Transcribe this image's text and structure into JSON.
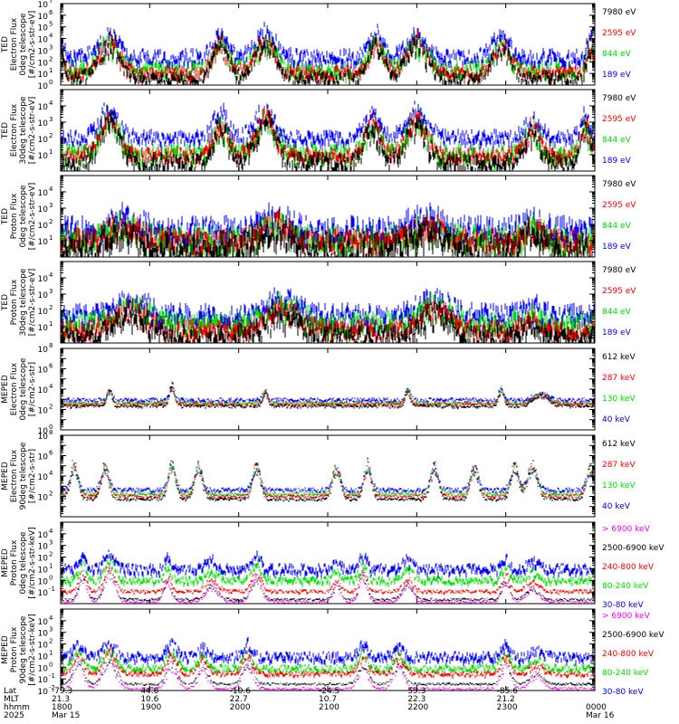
{
  "chart_data": {
    "type": "line",
    "title": "",
    "x_range": [
      1800,
      2400
    ],
    "panels": [
      {
        "id": "ted-electron-0deg",
        "ylabel_lines": [
          "TED",
          "Electron Flux",
          "0deg telescope",
          "[#/cm2-s-str-eV]"
        ],
        "ylim_exp": [
          0,
          7
        ],
        "tick_exps": [
          0,
          1,
          2,
          3,
          4,
          5,
          6,
          7
        ],
        "series": [
          {
            "name": "7980 eV",
            "color": "#000000",
            "baseline_exp": 0.8,
            "noise_exp": 0.5
          },
          {
            "name": "2595 eV",
            "color": "#ff0000",
            "baseline_exp": 1.2,
            "noise_exp": 0.5
          },
          {
            "name": "844 eV",
            "color": "#00dd00",
            "baseline_exp": 1.5,
            "noise_exp": 0.6
          },
          {
            "name": "189 eV",
            "color": "#0000ff",
            "baseline_exp": 2.6,
            "noise_exp": 0.6
          }
        ],
        "peaks": [
          {
            "t": 1800,
            "w": 5,
            "amp": 2.5
          },
          {
            "t": 1855,
            "w": 16,
            "amp": 3.0
          },
          {
            "t": 1980,
            "w": 12,
            "amp": 2.8
          },
          {
            "t": 2030,
            "w": 16,
            "amp": 3.0
          },
          {
            "t": 2155,
            "w": 12,
            "amp": 2.8
          },
          {
            "t": 2200,
            "w": 16,
            "amp": 3.0
          },
          {
            "t": 2295,
            "w": 14,
            "amp": 2.6
          },
          {
            "t": 2395,
            "w": 5,
            "amp": 2.5
          }
        ]
      },
      {
        "id": "ted-electron-30deg",
        "ylabel_lines": [
          "TED",
          "Electron Flux",
          "30deg telescope",
          "[#/cm2-s-str-eV]"
        ],
        "ylim_exp": [
          0,
          5
        ],
        "tick_exps": [
          1,
          2,
          3,
          4
        ],
        "series": [
          {
            "name": "7980 eV",
            "color": "#000000",
            "baseline_exp": 0.7,
            "noise_exp": 0.5
          },
          {
            "name": "2595 eV",
            "color": "#ff0000",
            "baseline_exp": 1.1,
            "noise_exp": 0.4
          },
          {
            "name": "844 eV",
            "color": "#00dd00",
            "baseline_exp": 1.2,
            "noise_exp": 0.5
          },
          {
            "name": "189 eV",
            "color": "#0000ff",
            "baseline_exp": 2.2,
            "noise_exp": 0.4
          }
        ],
        "peaks": [
          {
            "t": 1855,
            "w": 16,
            "amp": 2.5
          },
          {
            "t": 1980,
            "w": 12,
            "amp": 2.2
          },
          {
            "t": 2030,
            "w": 16,
            "amp": 2.5
          },
          {
            "t": 2150,
            "w": 12,
            "amp": 2.2
          },
          {
            "t": 2200,
            "w": 16,
            "amp": 2.5
          },
          {
            "t": 2330,
            "w": 12,
            "amp": 1.8
          },
          {
            "t": 2390,
            "w": 8,
            "amp": 2.0
          }
        ]
      },
      {
        "id": "ted-proton-0deg",
        "ylabel_lines": [
          "TED",
          "Proton Flux",
          "0deg telescope",
          "[#/cm2-s-str-eV]"
        ],
        "ylim_exp": [
          0,
          5
        ],
        "tick_exps": [
          1,
          2,
          3,
          4
        ],
        "series": [
          {
            "name": "7980 eV",
            "color": "#000000",
            "baseline_exp": 0.8,
            "noise_exp": 0.8
          },
          {
            "name": "2595 eV",
            "color": "#ff0000",
            "baseline_exp": 1.2,
            "noise_exp": 0.6
          },
          {
            "name": "844 eV",
            "color": "#00dd00",
            "baseline_exp": 1.3,
            "noise_exp": 0.7
          },
          {
            "name": "189 eV",
            "color": "#0000ff",
            "baseline_exp": 1.9,
            "noise_exp": 0.7
          }
        ],
        "peaks": [
          {
            "t": 1870,
            "w": 25,
            "amp": 1.1
          },
          {
            "t": 2040,
            "w": 25,
            "amp": 1.1
          },
          {
            "t": 2210,
            "w": 25,
            "amp": 1.1
          },
          {
            "t": 2330,
            "w": 15,
            "amp": 0.9
          }
        ]
      },
      {
        "id": "ted-proton-30deg",
        "ylabel_lines": [
          "TED",
          "Proton Flux",
          "30deg telescope",
          "[#/cm2-s-str-eV]"
        ],
        "ylim_exp": [
          0,
          5
        ],
        "tick_exps": [
          1,
          2,
          3,
          4
        ],
        "series": [
          {
            "name": "7980 eV",
            "color": "#000000",
            "baseline_exp": 0.6,
            "noise_exp": 0.6
          },
          {
            "name": "2595 eV",
            "color": "#ff0000",
            "baseline_exp": 1.0,
            "noise_exp": 0.5
          },
          {
            "name": "844 eV",
            "color": "#00dd00",
            "baseline_exp": 1.4,
            "noise_exp": 0.6
          },
          {
            "name": "189 eV",
            "color": "#0000ff",
            "baseline_exp": 1.9,
            "noise_exp": 0.6
          }
        ],
        "peaks": [
          {
            "t": 1880,
            "w": 25,
            "amp": 1.4
          },
          {
            "t": 2050,
            "w": 25,
            "amp": 1.4
          },
          {
            "t": 2220,
            "w": 25,
            "amp": 1.4
          },
          {
            "t": 2330,
            "w": 12,
            "amp": 0.8
          }
        ]
      },
      {
        "id": "meped-electron-0deg",
        "ylabel_lines": [
          "MEPED",
          "Electron Flux",
          "0deg telescope",
          "[#/cm2-s-str]"
        ],
        "ylim_exp": [
          0,
          8
        ],
        "tick_exps": [
          0,
          2,
          4,
          6,
          8
        ],
        "series": [
          {
            "name": "612 keV",
            "color": "#000000",
            "baseline_exp": 2.4,
            "noise_exp": 0.15
          },
          {
            "name": "287 keV",
            "color": "#ff0000",
            "baseline_exp": 2.6,
            "noise_exp": 0.15
          },
          {
            "name": "130 keV",
            "color": "#00dd00",
            "baseline_exp": 2.7,
            "noise_exp": 0.15
          },
          {
            "name": "40 keV",
            "color": "#0000ff",
            "baseline_exp": 3.0,
            "noise_exp": 0.2
          }
        ],
        "peaks": [
          {
            "t": 1855,
            "w": 4,
            "amp": 1.5
          },
          {
            "t": 1925,
            "w": 4,
            "amp": 2.0
          },
          {
            "t": 2030,
            "w": 4,
            "amp": 1.3
          },
          {
            "t": 2190,
            "w": 4,
            "amp": 1.5
          },
          {
            "t": 2295,
            "w": 4,
            "amp": 1.5
          },
          {
            "t": 2340,
            "w": 12,
            "amp": 1.0
          }
        ]
      },
      {
        "id": "meped-electron-90deg",
        "ylabel_lines": [
          "MEPED",
          "Electron Flux",
          "90deg telescope",
          "[#/cm2-s-str]"
        ],
        "ylim_exp": [
          0,
          8
        ],
        "tick_exps": [
          2,
          4,
          6,
          8
        ],
        "series": [
          {
            "name": "612 keV",
            "color": "#000000",
            "baseline_exp": 1.8,
            "noise_exp": 0.15
          },
          {
            "name": "287 keV",
            "color": "#ff0000",
            "baseline_exp": 2.1,
            "noise_exp": 0.15
          },
          {
            "name": "130 keV",
            "color": "#00dd00",
            "baseline_exp": 2.3,
            "noise_exp": 0.15
          },
          {
            "name": "40 keV",
            "color": "#0000ff",
            "baseline_exp": 2.7,
            "noise_exp": 0.2
          }
        ],
        "peaks": [
          {
            "t": 1815,
            "w": 6,
            "amp": 3.3
          },
          {
            "t": 1850,
            "w": 6,
            "amp": 3.3
          },
          {
            "t": 1925,
            "w": 6,
            "amp": 3.3
          },
          {
            "t": 1955,
            "w": 6,
            "amp": 3.3
          },
          {
            "t": 2020,
            "w": 6,
            "amp": 3.3
          },
          {
            "t": 2110,
            "w": 6,
            "amp": 3.2
          },
          {
            "t": 2145,
            "w": 6,
            "amp": 3.2
          },
          {
            "t": 2220,
            "w": 6,
            "amp": 3.2
          },
          {
            "t": 2265,
            "w": 6,
            "amp": 3.2
          },
          {
            "t": 2310,
            "w": 6,
            "amp": 3.2
          },
          {
            "t": 2330,
            "w": 8,
            "amp": 3.0
          },
          {
            "t": 2395,
            "w": 6,
            "amp": 3.0
          }
        ]
      },
      {
        "id": "meped-proton-0deg",
        "ylabel_lines": [
          "MEPED",
          "Proton Flux",
          "0deg telescope",
          "[#/cm2-s-str-keV]"
        ],
        "ylim_exp": [
          -2,
          5
        ],
        "tick_exps": [
          -1,
          0,
          1,
          2,
          3,
          4
        ],
        "series": [
          {
            "name": "> 6900 keV",
            "color": "#ff00ff",
            "baseline_exp": -1.8,
            "noise_exp": 0.1
          },
          {
            "name": "2500-6900 keV",
            "color": "#000000",
            "baseline_exp": -1.6,
            "noise_exp": 0.1
          },
          {
            "name": "240-800 keV",
            "color": "#ff0000",
            "baseline_exp": -0.9,
            "noise_exp": 0.15
          },
          {
            "name": "80-240 keV",
            "color": "#00dd00",
            "baseline_exp": 0.1,
            "noise_exp": 0.3
          },
          {
            "name": "30-80 keV",
            "color": "#0000ff",
            "baseline_exp": 1.1,
            "noise_exp": 0.4
          }
        ],
        "peaks": [
          {
            "t": 1825,
            "w": 6,
            "amp": 2.0
          },
          {
            "t": 1855,
            "w": 8,
            "amp": 2.6
          },
          {
            "t": 1920,
            "w": 6,
            "amp": 1.5
          },
          {
            "t": 1970,
            "w": 10,
            "amp": 1.2
          },
          {
            "t": 2020,
            "w": 8,
            "amp": 2.0
          },
          {
            "t": 2110,
            "w": 6,
            "amp": 1.3
          },
          {
            "t": 2140,
            "w": 6,
            "amp": 2.2
          },
          {
            "t": 2190,
            "w": 8,
            "amp": 1.5
          },
          {
            "t": 2300,
            "w": 6,
            "amp": 1.8
          },
          {
            "t": 2330,
            "w": 10,
            "amp": 1.0
          }
        ]
      },
      {
        "id": "meped-proton-90deg",
        "ylabel_lines": [
          "MEPED",
          "Proton Flux",
          "90deg telescope",
          "[#/cm2-s-str-keV]"
        ],
        "ylim_exp": [
          -2,
          5
        ],
        "tick_exps": [
          -2,
          -1,
          0,
          1,
          2,
          3,
          4
        ],
        "series": [
          {
            "name": "> 6900 keV",
            "color": "#ff00ff",
            "baseline_exp": -1.8,
            "noise_exp": 0.1
          },
          {
            "name": "2500-6900 keV",
            "color": "#000000",
            "baseline_exp": -1.4,
            "noise_exp": 0.1
          },
          {
            "name": "240-800 keV",
            "color": "#ff0000",
            "baseline_exp": -0.5,
            "noise_exp": 0.2
          },
          {
            "name": "80-240 keV",
            "color": "#00dd00",
            "baseline_exp": 0.0,
            "noise_exp": 0.3
          },
          {
            "name": "30-80 keV",
            "color": "#0000ff",
            "baseline_exp": 1.0,
            "noise_exp": 0.4
          }
        ],
        "peaks": [
          {
            "t": 1820,
            "w": 8,
            "amp": 2.2
          },
          {
            "t": 1855,
            "w": 10,
            "amp": 2.4
          },
          {
            "t": 1925,
            "w": 8,
            "amp": 2.0
          },
          {
            "t": 1960,
            "w": 8,
            "amp": 1.6
          },
          {
            "t": 2010,
            "w": 8,
            "amp": 2.0
          },
          {
            "t": 2140,
            "w": 8,
            "amp": 1.8
          },
          {
            "t": 2180,
            "w": 8,
            "amp": 1.9
          },
          {
            "t": 2300,
            "w": 8,
            "amp": 1.8
          },
          {
            "t": 2335,
            "w": 10,
            "amp": 1.0
          }
        ]
      }
    ],
    "x_axis": {
      "tick_times": [
        1800,
        1900,
        2000,
        2100,
        2200,
        2300,
        2400
      ],
      "row_labels": [
        "Lat",
        "MLT",
        "hhmm",
        "2025"
      ],
      "columns": [
        {
          "t": 1800,
          "lat": "-79.3",
          "mlt": "21.3",
          "hhmm": "1800",
          "date": "Mar 15"
        },
        {
          "t": 1900,
          "lat": "44.8",
          "mlt": "10.6",
          "hhmm": "1900",
          "date": ""
        },
        {
          "t": 2000,
          "lat": "-10.6",
          "mlt": "22.7",
          "hhmm": "2000",
          "date": ""
        },
        {
          "t": 2100,
          "lat": "-24.5",
          "mlt": "10.7",
          "hhmm": "2100",
          "date": ""
        },
        {
          "t": 2200,
          "lat": "59.3",
          "mlt": "22.3",
          "hhmm": "2200",
          "date": ""
        },
        {
          "t": 2300,
          "lat": "-85.6",
          "mlt": "21.2",
          "hhmm": "2300",
          "date": ""
        },
        {
          "t": 2400,
          "lat": "",
          "mlt": "",
          "hhmm": "0000",
          "date": "Mar 16"
        }
      ]
    }
  }
}
